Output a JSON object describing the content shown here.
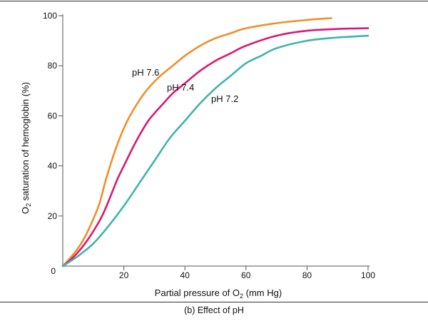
{
  "chart_data": {
    "type": "line",
    "title": "",
    "xlabel": "Partial pressure of O",
    "xlabel_sub": "2",
    "xlabel_suffix": " (mm Hg)",
    "ylabel": "O",
    "ylabel_sub": "2",
    "ylabel_suffix": " saturation of hemoglobin (%)",
    "xlim": [
      0,
      100
    ],
    "ylim": [
      0,
      100
    ],
    "x_ticks": [
      20,
      40,
      60,
      80,
      100
    ],
    "y_ticks": [
      20,
      40,
      60,
      80,
      100
    ],
    "origin_label": "0",
    "grid": false,
    "series": [
      {
        "name": "pH 7.6",
        "color": "#ef8f2a",
        "x": [
          0,
          3,
          6,
          9,
          12,
          14,
          16,
          18,
          20,
          22,
          25,
          28,
          32,
          36,
          40,
          45,
          50,
          55,
          60,
          70,
          80,
          88
        ],
        "y": [
          0,
          4,
          9,
          16,
          25,
          34,
          42,
          49,
          55,
          60,
          66,
          71,
          76,
          80,
          84,
          88,
          91,
          93,
          95,
          97,
          98.3,
          99
        ]
      },
      {
        "name": "pH 7.4",
        "color": "#d91a6e",
        "x": [
          0,
          3,
          6,
          9,
          12,
          14,
          16,
          18,
          20,
          22,
          25,
          28,
          30,
          33,
          36,
          40,
          45,
          50,
          55,
          60,
          70,
          80,
          90,
          100
        ],
        "y": [
          0,
          3,
          7,
          12,
          18,
          23,
          29,
          35,
          40,
          45,
          52,
          58,
          61,
          65,
          69,
          73,
          78,
          82,
          85,
          88,
          92,
          94,
          94.7,
          95
        ]
      },
      {
        "name": "pH 7.2",
        "color": "#3fb3ad",
        "x": [
          0,
          5,
          10,
          15,
          20,
          25,
          30,
          35,
          40,
          45,
          50,
          55,
          60,
          65,
          70,
          80,
          90,
          100
        ],
        "y": [
          0,
          4,
          9,
          16,
          24,
          33,
          42,
          51,
          58,
          65,
          71,
          76,
          81,
          84,
          87,
          90,
          91.3,
          92
        ]
      }
    ],
    "annotations": [
      {
        "text": "pH 7.6",
        "series": "pH 7.6"
      },
      {
        "text": "pH 7.4",
        "series": "pH 7.4"
      },
      {
        "text": "pH 7.2",
        "series": "pH 7.2"
      }
    ]
  },
  "caption": "(b) Effect of pH"
}
